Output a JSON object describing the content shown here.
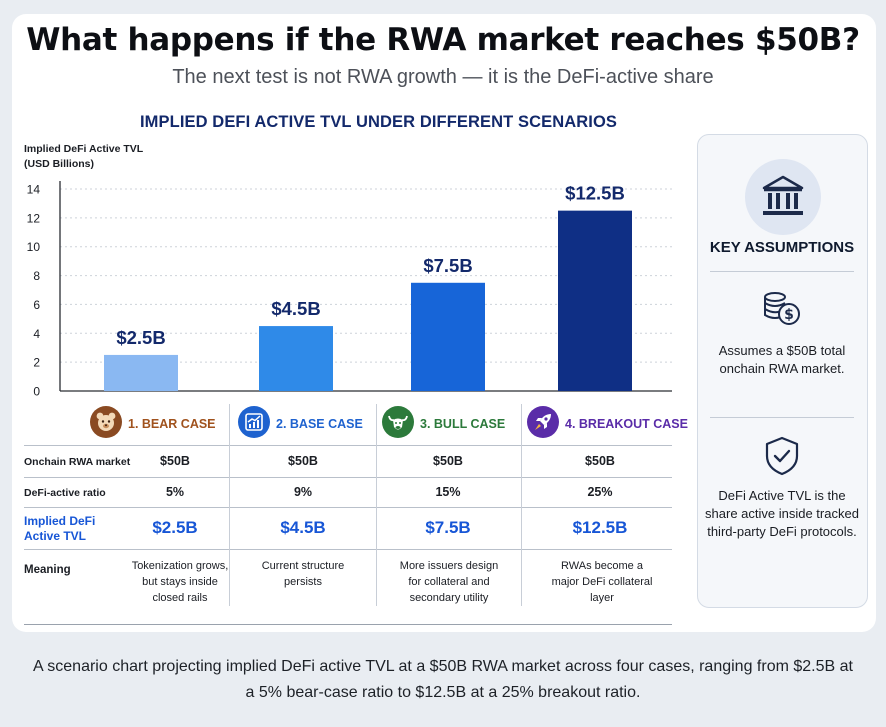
{
  "header": {
    "title": "What happens if the RWA market reaches $50B?",
    "subtitle": "The next test is not RWA growth — it is the DeFi-active share"
  },
  "chart_data": {
    "type": "bar",
    "title": "IMPLIED DEFI ACTIVE TVL UNDER DIFFERENT SCENARIOS",
    "ylabel": [
      "Implied DeFi Active TVL",
      "(USD Billions)"
    ],
    "categories": [
      "1. BEAR CASE",
      "2. BASE CASE",
      "3. BULL CASE",
      "4. BREAKOUT CASE"
    ],
    "values": [
      2.5,
      4.5,
      7.5,
      12.5
    ],
    "data_labels": [
      "$2.5B",
      "$4.5B",
      "$7.5B",
      "$12.5B"
    ],
    "yticks": [
      0,
      2,
      4,
      6,
      8,
      10,
      12,
      14
    ],
    "ylim": [
      0,
      14
    ],
    "grid": true,
    "bar_colors": [
      "#8ab8f2",
      "#2f8ae8",
      "#1765d8",
      "#0f2f85"
    ]
  },
  "cases": [
    {
      "label": "1. BEAR CASE",
      "icon": "bear-icon",
      "color": "#a0521d",
      "badge": "#8a4a22"
    },
    {
      "label": "2. BASE CASE",
      "icon": "trend-chart-icon",
      "color": "#1e62cf",
      "badge": "#1e62cf"
    },
    {
      "label": "3. BULL CASE",
      "icon": "bull-icon",
      "color": "#2c7a3b",
      "badge": "#2c7a3b"
    },
    {
      "label": "4. BREAKOUT CASE",
      "icon": "rocket-icon",
      "color": "#5a2ca8",
      "badge": "#5a2ca8"
    }
  ],
  "table": {
    "row_labels": [
      "Onchain RWA market",
      "DeFi-active ratio",
      "Implied DeFi Active TVL",
      "Meaning"
    ],
    "market": [
      "$50B",
      "$50B",
      "$50B",
      "$50B"
    ],
    "ratio": [
      "5%",
      "9%",
      "15%",
      "25%"
    ],
    "tvl": [
      "$2.5B",
      "$4.5B",
      "$7.5B",
      "$12.5B"
    ],
    "meaning": [
      "Tokenization grows, but stays inside closed rails",
      "Current structure persists",
      "More issuers design for collateral and secondary utility",
      "RWAs become a major DeFi collateral layer"
    ]
  },
  "panel": {
    "title": "KEY ASSUMPTIONS",
    "icons": [
      "bank-icon",
      "coins-dollar-icon",
      "shield-check-icon"
    ],
    "assumption_1": "Assumes a $50B total onchain RWA market.",
    "assumption_2": "DeFi Active TVL is the share active inside tracked third-party DeFi protocols."
  },
  "caption": "A scenario chart projecting implied DeFi active TVL at a $50B RWA market across four cases, ranging from $2.5B at a 5% bear-case ratio to $12.5B at a 25% breakout ratio."
}
